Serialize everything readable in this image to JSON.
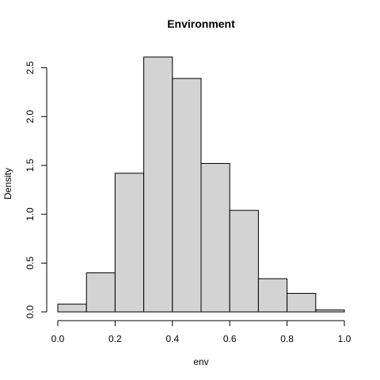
{
  "chart_data": {
    "type": "bar",
    "title": "Environment",
    "xlabel": "env",
    "ylabel": "Density",
    "bins": [
      {
        "start": 0.0,
        "end": 0.1,
        "value": 0.08
      },
      {
        "start": 0.1,
        "end": 0.2,
        "value": 0.4
      },
      {
        "start": 0.2,
        "end": 0.3,
        "value": 1.42
      },
      {
        "start": 0.3,
        "end": 0.4,
        "value": 2.61
      },
      {
        "start": 0.4,
        "end": 0.5,
        "value": 2.39
      },
      {
        "start": 0.5,
        "end": 0.6,
        "value": 1.52
      },
      {
        "start": 0.6,
        "end": 0.7,
        "value": 1.04
      },
      {
        "start": 0.7,
        "end": 0.8,
        "value": 0.34
      },
      {
        "start": 0.8,
        "end": 0.9,
        "value": 0.19
      },
      {
        "start": 0.9,
        "end": 1.0,
        "value": 0.02
      }
    ],
    "xlim": [
      0.0,
      1.0
    ],
    "ylim": [
      0.0,
      2.61
    ],
    "xticks": [
      "0.0",
      "0.2",
      "0.4",
      "0.6",
      "0.8",
      "1.0"
    ],
    "yticks": [
      "0.0",
      "0.5",
      "1.0",
      "1.5",
      "2.0",
      "2.5"
    ],
    "grid": false,
    "colors": {
      "bar_fill": "#d3d3d3",
      "bar_stroke": "#000000"
    }
  }
}
